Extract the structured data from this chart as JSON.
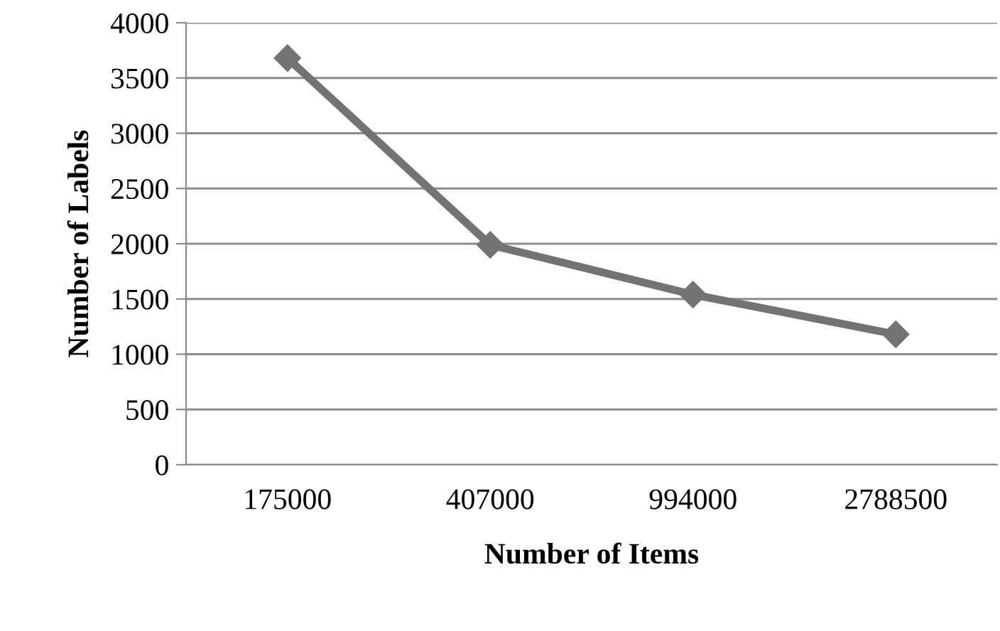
{
  "chart_data": {
    "type": "line",
    "xlabel": "Number of Items",
    "ylabel": "Number of Labels",
    "categories": [
      "175000",
      "407000",
      "994000",
      "2788500"
    ],
    "series": [
      {
        "color": "#737373",
        "values": [
          3680,
          1990,
          1540,
          1180
        ]
      }
    ],
    "ylim": [
      0,
      4000
    ],
    "yticks": [
      0,
      500,
      1000,
      1500,
      2000,
      2500,
      3000,
      3500,
      4000
    ],
    "grid": "y",
    "marker": "diamond",
    "line_style": "solid",
    "legend": false
  }
}
